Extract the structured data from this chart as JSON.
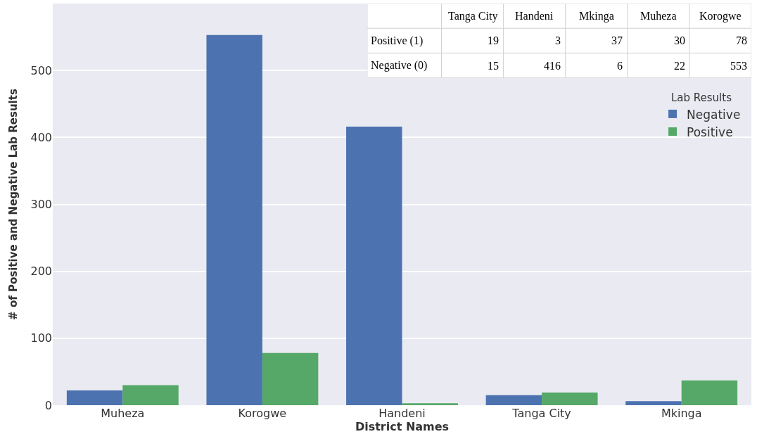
{
  "chart_data": [
    {
      "type": "bar",
      "xlabel": "District Names",
      "ylabel": "# of Positive and Negative Lab Results",
      "legend_title": "Lab Results",
      "categories": [
        "Muheza",
        "Korogwe",
        "Handeni",
        "Tanga City",
        "Mkinga"
      ],
      "series": [
        {
          "name": "Negative",
          "color": "#4c72b0",
          "values": [
            22,
            553,
            416,
            15,
            6
          ]
        },
        {
          "name": "Positive",
          "color": "#55a868",
          "values": [
            30,
            78,
            3,
            19,
            37
          ]
        }
      ],
      "ylim": [
        0,
        600
      ],
      "yticks": [
        0,
        100,
        200,
        300,
        400,
        500
      ],
      "grid": "y",
      "legend": "right"
    },
    {
      "type": "heatmap",
      "categories": [
        "Tanga City",
        "Handeni",
        "Mkinga",
        "Muheza",
        "Korogwe"
      ],
      "y_categories": [
        "Positive (1)",
        "Negative (0)"
      ],
      "cells": [
        [
          19,
          3,
          37,
          30,
          78
        ],
        [
          15,
          416,
          6,
          22,
          553
        ]
      ],
      "data_labels": true
    }
  ]
}
